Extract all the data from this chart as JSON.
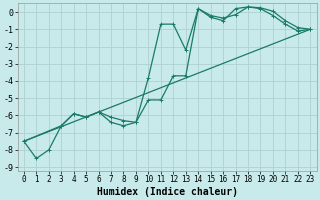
{
  "xlabel": "Humidex (Indice chaleur)",
  "background_color": "#c8eaea",
  "grid_color": "#b0d0d0",
  "line_color": "#1a7a6a",
  "xlim": [
    -0.5,
    23.5
  ],
  "ylim": [
    -9.2,
    0.5
  ],
  "xticks": [
    0,
    1,
    2,
    3,
    4,
    5,
    6,
    7,
    8,
    9,
    10,
    11,
    12,
    13,
    14,
    15,
    16,
    17,
    18,
    19,
    20,
    21,
    22,
    23
  ],
  "yticks": [
    0,
    -1,
    -2,
    -3,
    -4,
    -5,
    -6,
    -7,
    -8,
    -9
  ],
  "line1_x": [
    0,
    1,
    2,
    3,
    4,
    5,
    6,
    7,
    8,
    9,
    10,
    11,
    12,
    13,
    14,
    15,
    16,
    17,
    18,
    19,
    20,
    21,
    22,
    23
  ],
  "line1_y": [
    -7.5,
    -8.5,
    -8.0,
    -6.6,
    -5.9,
    -6.1,
    -5.8,
    -6.1,
    -6.3,
    -6.4,
    -3.8,
    -0.7,
    -0.7,
    -2.2,
    0.2,
    -0.3,
    -0.5,
    0.2,
    0.3,
    0.2,
    -0.2,
    -0.7,
    -1.1,
    -1.0
  ],
  "line2_x": [
    0,
    3,
    4,
    5,
    6,
    7,
    8,
    9,
    10,
    11,
    12,
    13,
    14,
    15,
    16,
    17,
    18,
    19,
    20,
    21,
    22,
    23
  ],
  "line2_y": [
    -7.5,
    -6.6,
    -5.9,
    -6.1,
    -5.8,
    -6.4,
    -6.6,
    -6.4,
    -5.1,
    -5.1,
    -3.7,
    -3.7,
    0.2,
    -0.2,
    -0.35,
    -0.15,
    0.3,
    0.25,
    0.05,
    -0.5,
    -0.9,
    -1.0
  ],
  "line3_x": [
    0,
    23
  ],
  "line3_y": [
    -7.5,
    -1.0
  ],
  "linewidth": 0.9,
  "font_size_label": 7,
  "font_size_tick": 5.5
}
